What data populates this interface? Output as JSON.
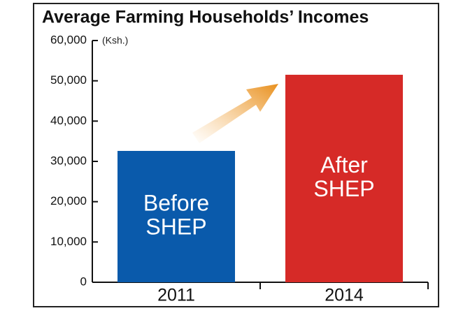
{
  "chart_data": {
    "type": "bar",
    "title": "Average Farming Households’ Incomes",
    "unit": "(Ksh.)",
    "categories": [
      "2011",
      "2014"
    ],
    "values": [
      32600,
      51500
    ],
    "colors": [
      "#0a5aab",
      "#d62a27"
    ],
    "bar_labels": [
      [
        "Before",
        "SHEP"
      ],
      [
        "After",
        "SHEP"
      ]
    ],
    "ylim": [
      0,
      60000
    ],
    "yticks": [
      0,
      {
        "value": 10000,
        "label": "10,000"
      },
      {
        "value": 20000,
        "label": "20,000"
      },
      {
        "value": 30000,
        "label": "30,000"
      },
      {
        "value": 40000,
        "label": "40,000"
      },
      {
        "value": 50000,
        "label": "50,000"
      },
      {
        "value": 60000,
        "label": "60,000"
      }
    ]
  }
}
